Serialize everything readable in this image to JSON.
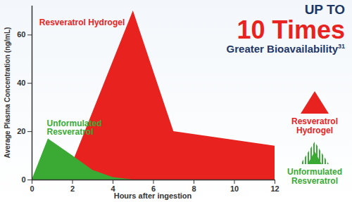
{
  "chart_data": {
    "type": "area",
    "title_lines": [
      "UP TO",
      "10 Times",
      "Greater Bioavailability"
    ],
    "title_reference": "31",
    "x_label": "Hours after ingestion",
    "y_label": "Average Plasma Concentration (ng/mL)",
    "xlim": [
      0,
      12
    ],
    "xticks": [
      0,
      2,
      4,
      6,
      8,
      10,
      12
    ],
    "ylim": [
      0,
      72
    ],
    "yticks": [
      0,
      20,
      40,
      60
    ],
    "legend": "right",
    "series": [
      {
        "name": "Resveratrol Hydrogel",
        "color": "#e8231f",
        "x": [
          0,
          1,
          2,
          5,
          7,
          12
        ],
        "values": [
          0,
          3,
          7,
          70,
          20,
          14
        ]
      },
      {
        "name": "Unformulated Resveratrol",
        "color": "#3aaa35",
        "x": [
          0,
          0.8,
          2,
          3,
          4,
          5
        ],
        "values": [
          0,
          17,
          10,
          4,
          1,
          0
        ]
      }
    ],
    "annotations": [
      {
        "text": "Resveratrol Hydrogel",
        "series": "Resveratrol Hydrogel"
      },
      {
        "text": "Unformulated Resveratrol",
        "series": "Unformulated Resveratrol"
      }
    ]
  }
}
